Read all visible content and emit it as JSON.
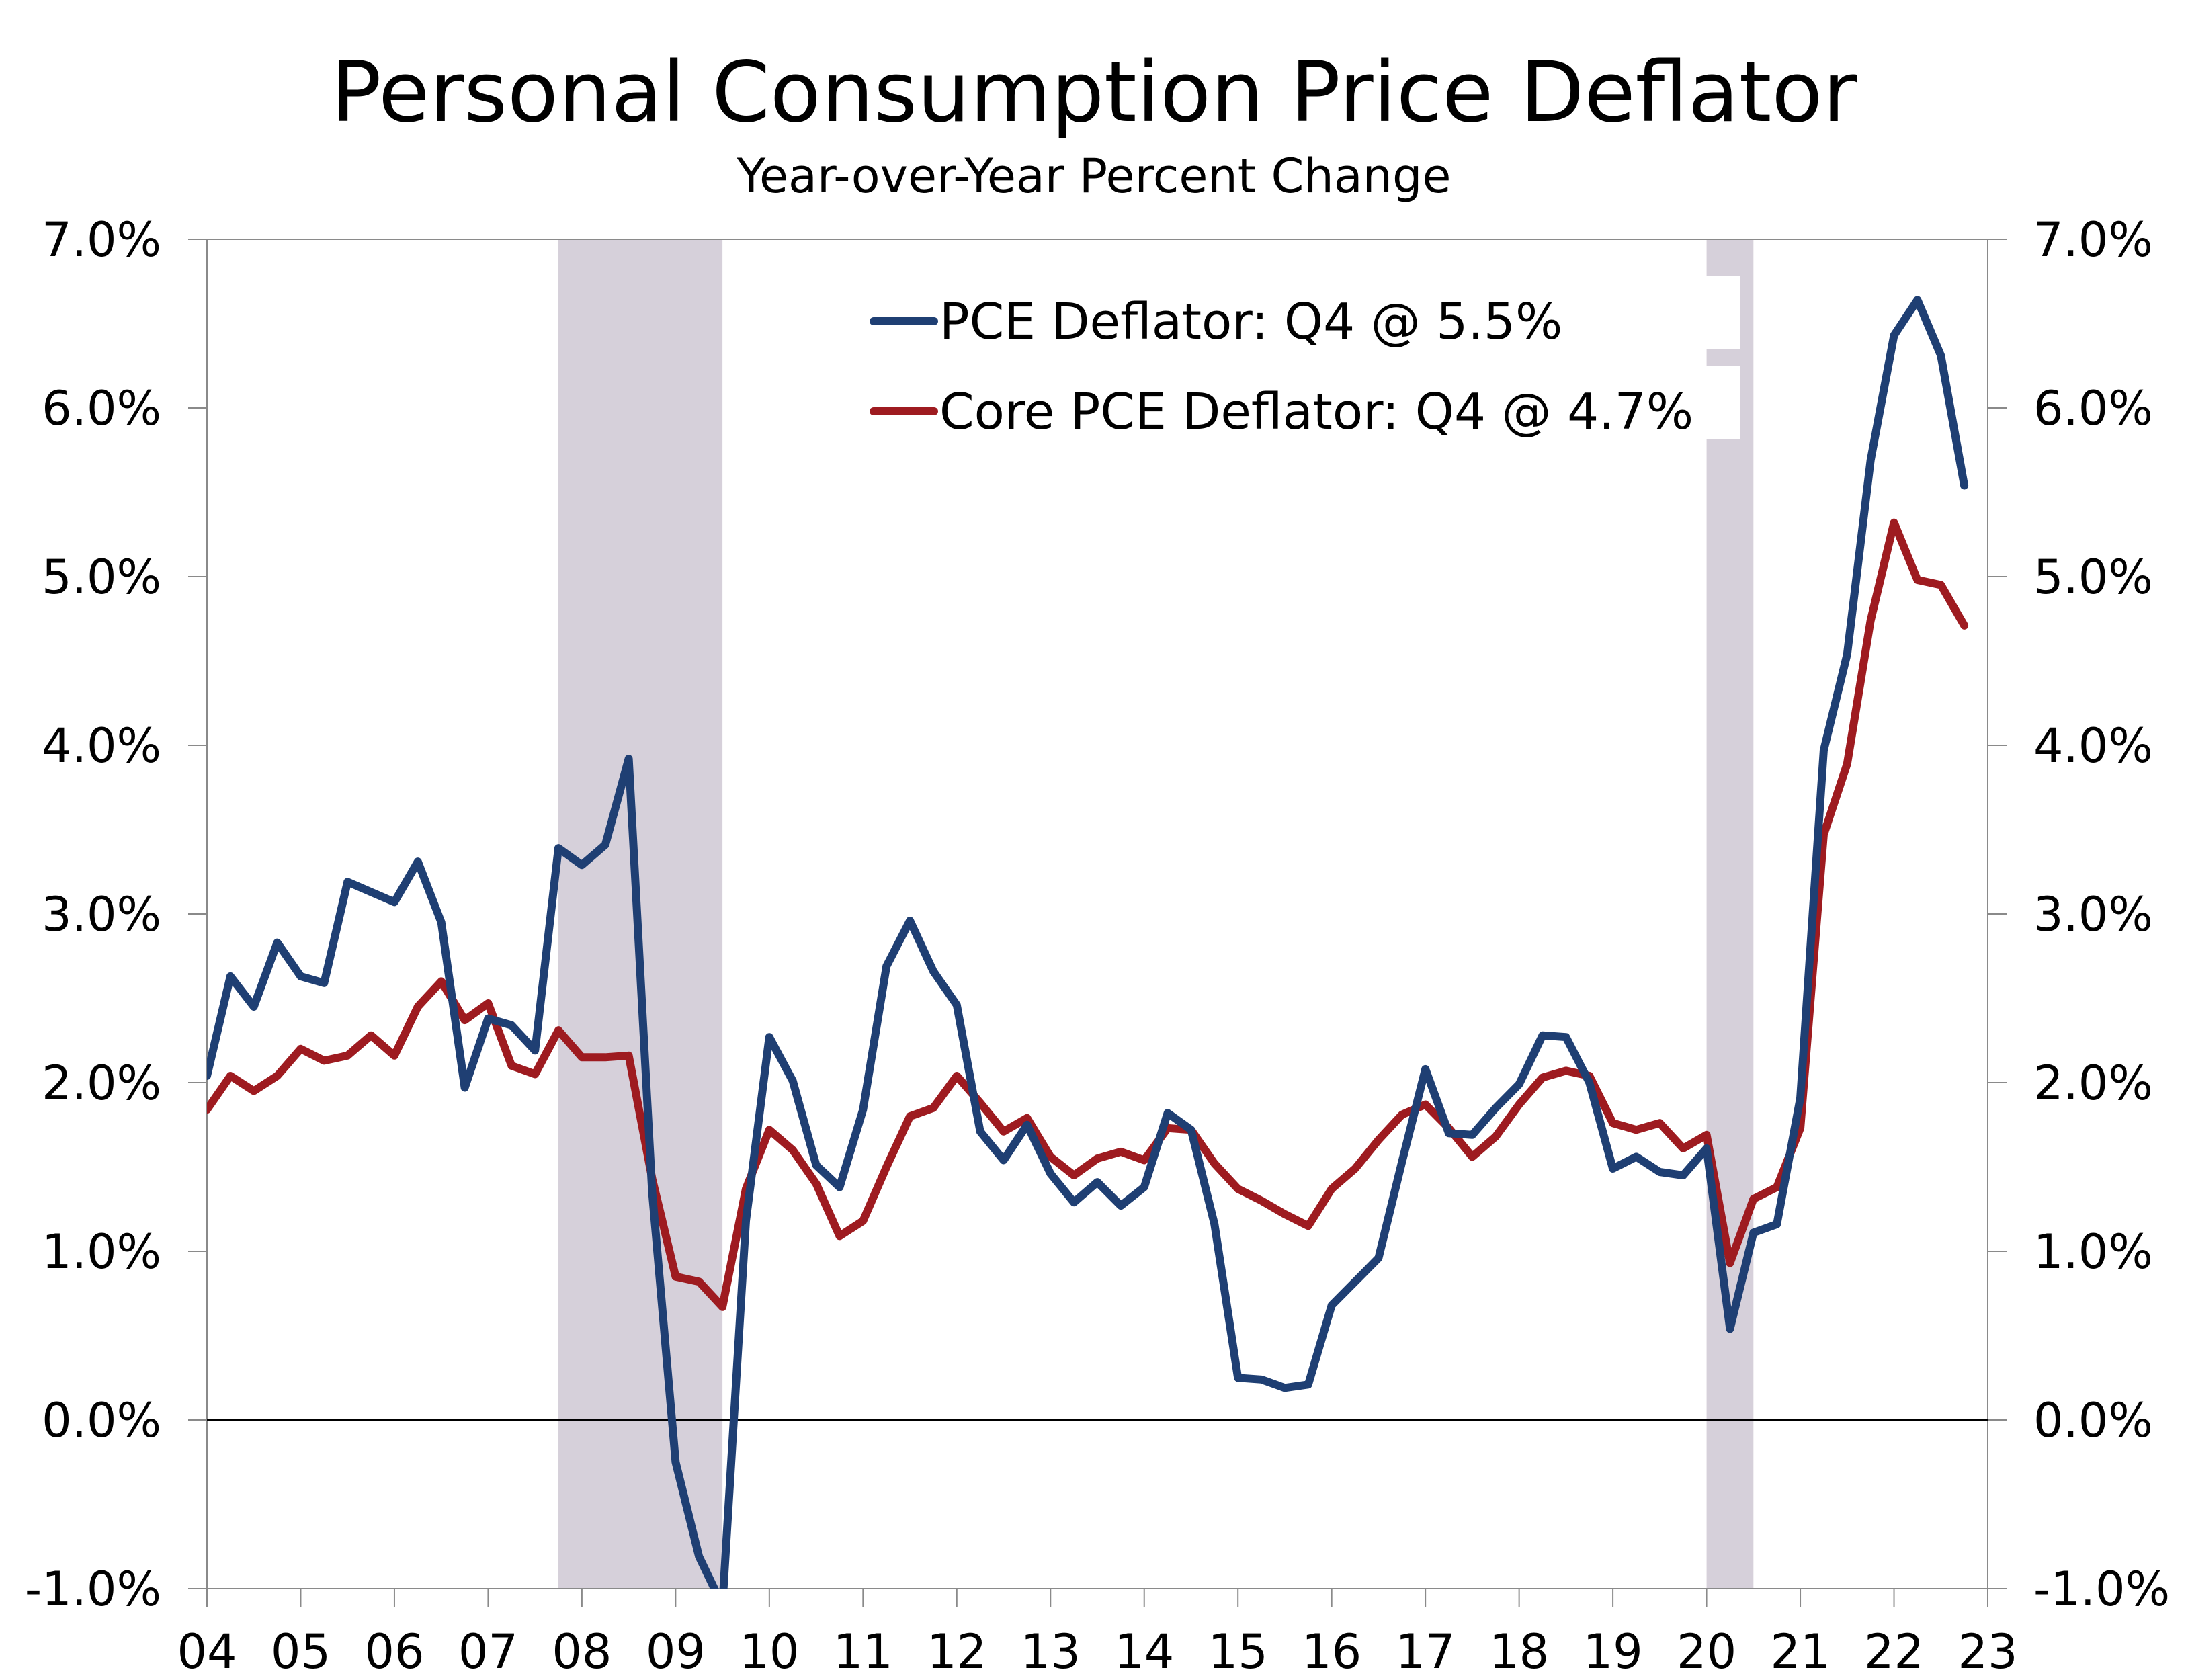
{
  "chart_data": {
    "type": "line",
    "title": "Personal Consumption Price Deflator",
    "subtitle": "Year-over-Year Percent Change",
    "x_start": "2004 Q1",
    "frequency": "quarterly",
    "xlim": [
      "2004 Q1",
      "2023 Q1"
    ],
    "x_tick_labels": [
      "04",
      "05",
      "06",
      "07",
      "08",
      "09",
      "10",
      "11",
      "12",
      "13",
      "14",
      "15",
      "16",
      "17",
      "18",
      "19",
      "20",
      "21",
      "22",
      "23"
    ],
    "ylim": [
      -1.0,
      7.0
    ],
    "y_tick_labels": [
      "-1.0%",
      "0.0%",
      "1.0%",
      "2.0%",
      "3.0%",
      "4.0%",
      "5.0%",
      "6.0%",
      "7.0%"
    ],
    "y_tick_values": [
      -1,
      0,
      1,
      2,
      3,
      4,
      5,
      6,
      7
    ],
    "secondary_y_axis": true,
    "grid": false,
    "zero_line": true,
    "legend_position": "top-right",
    "recessions": [
      {
        "start": "2007 Q4",
        "end": "2009 Q2"
      },
      {
        "start": "2020 Q1",
        "end": "2020 Q2"
      }
    ],
    "series": [
      {
        "name": "PCE Deflator: Q4 @ 5.5%",
        "color": "#1f3f73",
        "values": [
          2.04,
          2.63,
          2.45,
          2.83,
          2.63,
          2.59,
          3.19,
          3.13,
          3.07,
          3.31,
          2.95,
          1.97,
          2.38,
          2.34,
          2.19,
          3.39,
          3.29,
          3.41,
          3.92,
          1.35,
          -0.25,
          -0.81,
          -1.1,
          1.18,
          2.27,
          2.01,
          1.51,
          1.38,
          1.84,
          2.69,
          2.96,
          2.66,
          2.46,
          1.71,
          1.54,
          1.75,
          1.46,
          1.29,
          1.41,
          1.27,
          1.38,
          1.82,
          1.72,
          1.16,
          0.25,
          0.24,
          0.19,
          0.21,
          0.68,
          0.82,
          0.96,
          1.53,
          2.08,
          1.7,
          1.69,
          1.85,
          1.99,
          2.28,
          2.27,
          2.0,
          1.49,
          1.56,
          1.47,
          1.45,
          1.61,
          0.54,
          1.11,
          1.16,
          1.91,
          3.97,
          4.54,
          5.69,
          6.43,
          6.64,
          6.31,
          5.54
        ]
      },
      {
        "name": "Core PCE Deflator: Q4 @ 4.7%",
        "color": "#9e1b20",
        "values": [
          1.84,
          2.04,
          1.95,
          2.04,
          2.2,
          2.13,
          2.16,
          2.28,
          2.16,
          2.45,
          2.6,
          2.37,
          2.47,
          2.1,
          2.05,
          2.31,
          2.15,
          2.15,
          2.16,
          1.43,
          0.85,
          0.82,
          0.67,
          1.37,
          1.72,
          1.6,
          1.4,
          1.09,
          1.18,
          1.5,
          1.8,
          1.85,
          2.04,
          1.88,
          1.71,
          1.79,
          1.56,
          1.45,
          1.55,
          1.59,
          1.54,
          1.73,
          1.72,
          1.52,
          1.37,
          1.3,
          1.22,
          1.15,
          1.37,
          1.49,
          1.66,
          1.81,
          1.87,
          1.73,
          1.56,
          1.68,
          1.87,
          2.03,
          2.07,
          2.04,
          1.76,
          1.72,
          1.76,
          1.61,
          1.69,
          0.93,
          1.31,
          1.38,
          1.73,
          3.47,
          3.89,
          4.74,
          5.32,
          4.98,
          4.95,
          4.71
        ]
      }
    ]
  }
}
